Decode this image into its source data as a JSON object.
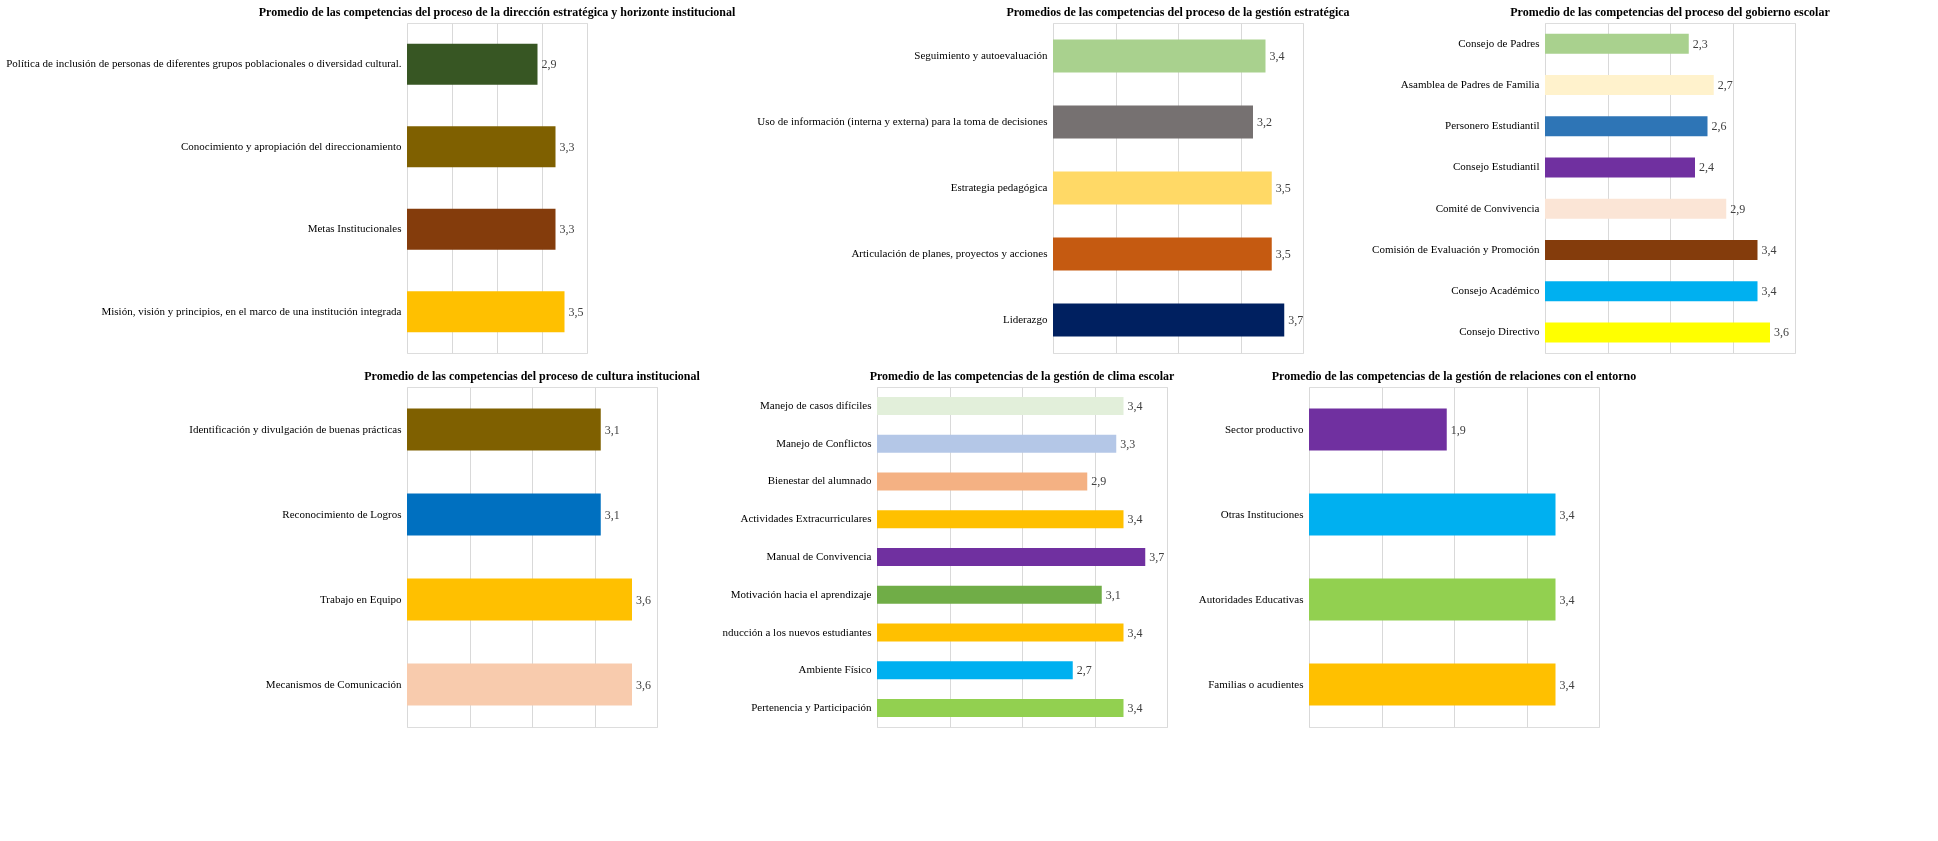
{
  "chart_data": [
    {
      "type": "bar",
      "orientation": "horizontal",
      "title": "Promedio de las competencias del proceso de la dirección estratégica y horizonte institucional",
      "categories": [
        "Política de inclusión de personas de diferentes grupos poblacionales o diversidad cultural.",
        "Conocimiento y apropiación del direccionamiento",
        "Metas Institucionales",
        "Misión, visión y principios, en el marco de una institución integrada"
      ],
      "values": [
        2.9,
        3.3,
        3.3,
        3.5
      ],
      "value_labels": [
        "2,9",
        "3,3",
        "3,3",
        "3,5"
      ],
      "colors": [
        "#375623",
        "#7f6000",
        "#843c0c",
        "#ffc000"
      ],
      "xlim": [
        0,
        4
      ],
      "xticks": [
        {
          "value": 0,
          "label": null
        },
        {
          "value": 1,
          "label": null
        },
        {
          "value": 2,
          "label": null
        },
        {
          "value": 3,
          "label": null
        },
        {
          "value": 4,
          "label": null
        }
      ],
      "grid": "x",
      "tick_labels": "y"
    },
    {
      "type": "bar",
      "orientation": "horizontal",
      "title": "Promedios de las competencias del proceso de la gestión estratégica",
      "categories": [
        "Seguimiento y autoevaluación",
        "Uso de información (interna y externa) para la toma de decisiones",
        "Estrategia pedagógica",
        "Articulación de planes, proyectos y acciones",
        "Liderazgo"
      ],
      "values": [
        3.4,
        3.2,
        3.5,
        3.5,
        3.7
      ],
      "value_labels": [
        "3,4",
        "3,2",
        "3,5",
        "3,5",
        "3,7"
      ],
      "colors": [
        "#a9d18e",
        "#767171",
        "#ffd966",
        "#c55a11",
        "#002060"
      ],
      "xlim": [
        0,
        4
      ],
      "xticks": [
        {
          "value": 0,
          "label": null
        },
        {
          "value": 1,
          "label": null
        },
        {
          "value": 2,
          "label": null
        },
        {
          "value": 3,
          "label": null
        },
        {
          "value": 4,
          "label": null
        }
      ],
      "grid": "x",
      "tick_labels": "y"
    },
    {
      "type": "bar",
      "orientation": "horizontal",
      "title": "Promedio de las competencias del proceso del gobierno escolar",
      "categories": [
        "Consejo de Padres",
        "Asamblea de Padres de Familia",
        "Personero Estudiantil",
        "Consejo Estudiantil",
        "Comité de Convivencia",
        "Comisión de Evaluación y Promoción",
        "Consejo Académico",
        "Consejo Directivo"
      ],
      "values": [
        2.3,
        2.7,
        2.6,
        2.4,
        2.9,
        3.4,
        3.4,
        3.6
      ],
      "value_labels": [
        "2,3",
        "2,7",
        "2,6",
        "2,4",
        "2,9",
        "3,4",
        "3,4",
        "3,6"
      ],
      "colors": [
        "#a9d18e",
        "#fff2cc",
        "#2e75b6",
        "#7030a0",
        "#fbe5d6",
        "#843c0c",
        "#00b0f0",
        "#ffff00"
      ],
      "xlim": [
        0,
        4
      ],
      "xticks": [
        {
          "value": 0,
          "label": null
        },
        {
          "value": 1,
          "label": null
        },
        {
          "value": 2,
          "label": null
        },
        {
          "value": 3,
          "label": null
        },
        {
          "value": 4,
          "label": null
        }
      ],
      "grid": "x",
      "tick_labels": "y"
    },
    {
      "type": "bar",
      "orientation": "horizontal",
      "title": "Promedio de las competencias del proceso de cultura institucional",
      "categories": [
        "Identificación y divulgación de buenas prácticas",
        "Reconocimiento de Logros",
        "Trabajo en Equipo",
        "Mecanismos de Comunicación"
      ],
      "values": [
        3.1,
        3.1,
        3.6,
        3.6
      ],
      "value_labels": [
        "3,1",
        "3,1",
        "3,6",
        "3,6"
      ],
      "colors": [
        "#7f6000",
        "#0070c0",
        "#ffc000",
        "#f8cbad"
      ],
      "xlim": [
        0,
        4
      ],
      "xticks": [
        {
          "value": 0,
          "label": null
        },
        {
          "value": 1,
          "label": null
        },
        {
          "value": 2,
          "label": null
        },
        {
          "value": 3,
          "label": null
        },
        {
          "value": 4,
          "label": null
        }
      ],
      "grid": "x",
      "tick_labels": "y"
    },
    {
      "type": "bar",
      "orientation": "horizontal",
      "title": "Promedio de las competencias de  la gestión de clima escolar",
      "categories": [
        "Manejo de casos difíciles",
        "Manejo de Conflictos",
        "Bienestar del alumnado",
        "Actividades Extracurriculares",
        "Manual de Convivencia",
        "Motivación hacia el aprendizaje",
        "nducción a los nuevos estudiantes",
        "Ambiente Físico",
        "Pertenencia y Participación"
      ],
      "values": [
        3.4,
        3.3,
        2.9,
        3.4,
        3.7,
        3.1,
        3.4,
        2.7,
        3.4
      ],
      "value_labels": [
        "3,4",
        "3,3",
        "2,9",
        "3,4",
        "3,7",
        "3,1",
        "3,4",
        "2,7",
        "3,4"
      ],
      "colors": [
        "#e2efda",
        "#b4c7e7",
        "#f4b183",
        "#ffc000",
        "#7030a0",
        "#70ad47",
        "#ffc000",
        "#00b0f0",
        "#92d050"
      ],
      "xlim": [
        0,
        4
      ],
      "xticks": [
        {
          "value": 0,
          "label": null
        },
        {
          "value": 1,
          "label": null
        },
        {
          "value": 2,
          "label": null
        },
        {
          "value": 3,
          "label": null
        },
        {
          "value": 4,
          "label": null
        }
      ],
      "grid": "x",
      "tick_labels": "y"
    },
    {
      "type": "bar",
      "orientation": "horizontal",
      "title": "Promedio de las competencias de la gestión de relaciones con el entorno",
      "categories": [
        "Sector productivo",
        "Otras Instituciones",
        "Autoridades Educativas",
        "Familias o acudientes"
      ],
      "values": [
        1.9,
        3.4,
        3.4,
        3.4
      ],
      "value_labels": [
        "1,9",
        "3,4",
        "3,4",
        "3,4"
      ],
      "colors": [
        "#7030a0",
        "#00b0f0",
        "#92d050",
        "#ffc000"
      ],
      "xlim": [
        0,
        4
      ],
      "xticks": [
        {
          "value": 0,
          "label": null
        },
        {
          "value": 1,
          "label": null
        },
        {
          "value": 2,
          "label": null
        },
        {
          "value": 3,
          "label": null
        },
        {
          "value": 4,
          "label": null
        }
      ],
      "grid": "x",
      "tick_labels": "y"
    }
  ]
}
